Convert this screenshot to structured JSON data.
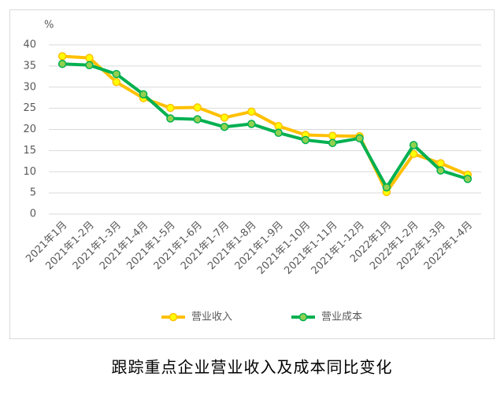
{
  "chart_data": {
    "type": "line",
    "title": "跟踪重点企业营业收入及成本同比变化",
    "y_unit": "%",
    "categories": [
      "2021年1月",
      "2021年1-2月",
      "2021年1-3月",
      "2021年1-4月",
      "2021年1-5月",
      "2021年1-6月",
      "2021年1-7月",
      "2021年1-8月",
      "2021年1-9月",
      "2021年1-10月",
      "2021年1-11月",
      "2021年1-12月",
      "2022年1月",
      "2022年1-2月",
      "2022年1-3月",
      "2022年1-4月"
    ],
    "series": [
      {
        "name": "营业收入",
        "color": "#FFC000",
        "marker_color": "#FFFF00",
        "values": [
          37.3,
          36.9,
          31.2,
          27.4,
          25.1,
          25.2,
          22.8,
          24.2,
          20.8,
          18.7,
          18.5,
          18.4,
          5.2,
          14.2,
          12.0,
          9.3
        ]
      },
      {
        "name": "营业成本",
        "color": "#00B050",
        "marker_color": "#92D050",
        "values": [
          35.5,
          35.2,
          33.1,
          28.3,
          22.6,
          22.4,
          20.6,
          21.3,
          19.2,
          17.5,
          16.8,
          17.9,
          6.3,
          16.3,
          10.3,
          8.3
        ]
      }
    ],
    "ylim": [
      0,
      40
    ],
    "yticks": [
      0,
      5,
      10,
      15,
      20,
      25,
      30,
      35,
      40
    ],
    "grid": true,
    "legend": "bottom"
  }
}
